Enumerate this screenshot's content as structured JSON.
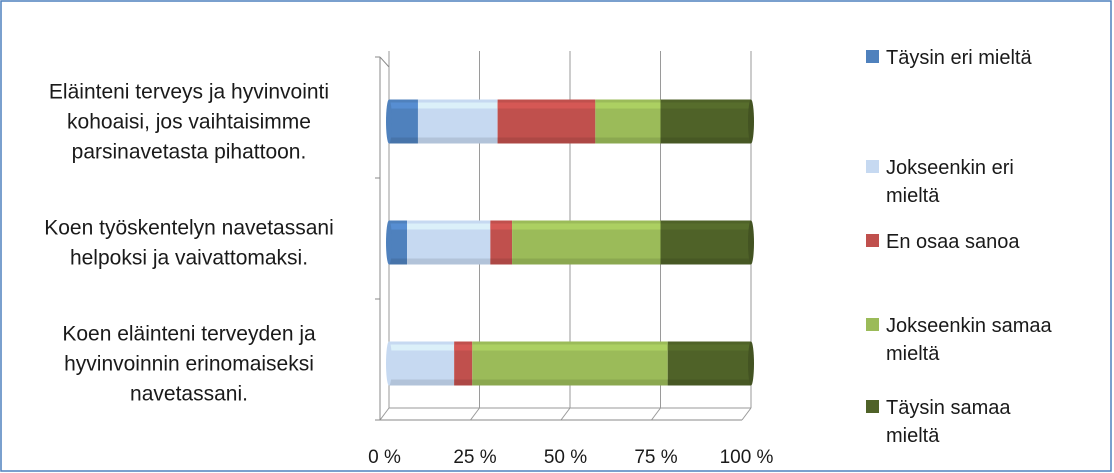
{
  "chart_data": {
    "type": "bar",
    "orientation": "horizontal",
    "stacked": "percent",
    "categories": [
      "Eläinteni terveys ja hyvinvointi kohoaisi, jos vaihtaisimme parsinavetasta pihattoon.",
      "Koen työskentelyn navetassani helpoksi ja vaivattomaksi.",
      "Koen eläinteni terveyden ja hyvinvoinnin erinomaiseksi navetassani."
    ],
    "category_lines": [
      [
        "Eläinteni terveys ja hyvinvointi",
        "kohoaisi, jos vaihtaisimme",
        "parsinavetasta pihattoon."
      ],
      [
        "Koen työskentelyn navetassani",
        "helpoksi ja vaivattomaksi."
      ],
      [
        "Koen eläinteni terveyden ja",
        "hyvinvoinnin erinomaiseksi",
        "navetassani."
      ]
    ],
    "series": [
      {
        "name": "Täysin eri mieltä",
        "values": [
          8,
          5,
          0
        ]
      },
      {
        "name": "Jokseenkin eri mieltä",
        "values": [
          22,
          23,
          18
        ]
      },
      {
        "name": "En osaa sanoa",
        "values": [
          27,
          6,
          5
        ]
      },
      {
        "name": "Jokseenkin samaa mieltä",
        "values": [
          18,
          41,
          54
        ]
      },
      {
        "name": "Täysin samaa mieltä",
        "values": [
          25,
          25,
          23
        ]
      }
    ],
    "legend_lines": [
      [
        "Täysin eri mieltä"
      ],
      [
        "Jokseenkin eri",
        "mieltä"
      ],
      [
        "En osaa sanoa"
      ],
      [
        "Jokseenkin samaa",
        "mieltä"
      ],
      [
        "Täysin samaa",
        "mieltä"
      ]
    ],
    "colors": [
      "#4f81bd",
      "#c6d9f1",
      "#c0504d",
      "#9bbb59",
      "#4f6228"
    ],
    "x_ticks": [
      "0 %",
      "25 %",
      "50 %",
      "75 %",
      "100 %"
    ],
    "xlim": [
      0,
      100
    ],
    "grid": true,
    "legend_position": "right"
  }
}
